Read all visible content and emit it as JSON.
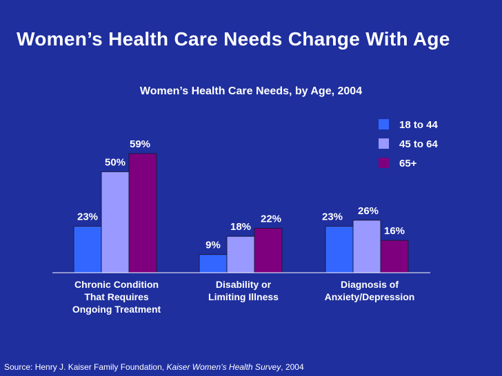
{
  "slide": {
    "title": "Women’s Health Care Needs Change With Age"
  },
  "source": {
    "prefix": "Source: Henry J. Kaiser Family Foundation, ",
    "publication": "Kaiser Women’s Health Survey",
    "suffix": ", 2004"
  },
  "chart_data": {
    "type": "bar",
    "title": "Women’s Health Care Needs, by Age, 2004",
    "categories": [
      [
        "Chronic Condition",
        "That Requires",
        "Ongoing Treatment"
      ],
      [
        "Disability or",
        "Limiting Illness"
      ],
      [
        "Diagnosis of",
        "Anxiety/Depression"
      ]
    ],
    "series": [
      {
        "name": "18 to 44",
        "color": "#3366ff",
        "values": [
          23,
          9,
          23
        ],
        "labels": [
          "23%",
          "9%",
          "23%"
        ]
      },
      {
        "name": "45 to 64",
        "color": "#9999ff",
        "values": [
          50,
          18,
          26
        ],
        "labels": [
          "50%",
          "18%",
          "26%"
        ]
      },
      {
        "name": "65+",
        "color": "#7f007f",
        "values": [
          59,
          22,
          16
        ],
        "labels": [
          "59%",
          "22%",
          "16%"
        ]
      }
    ],
    "ylim": [
      0,
      59
    ],
    "grid": false,
    "legend": "top-right",
    "unit": "%"
  }
}
